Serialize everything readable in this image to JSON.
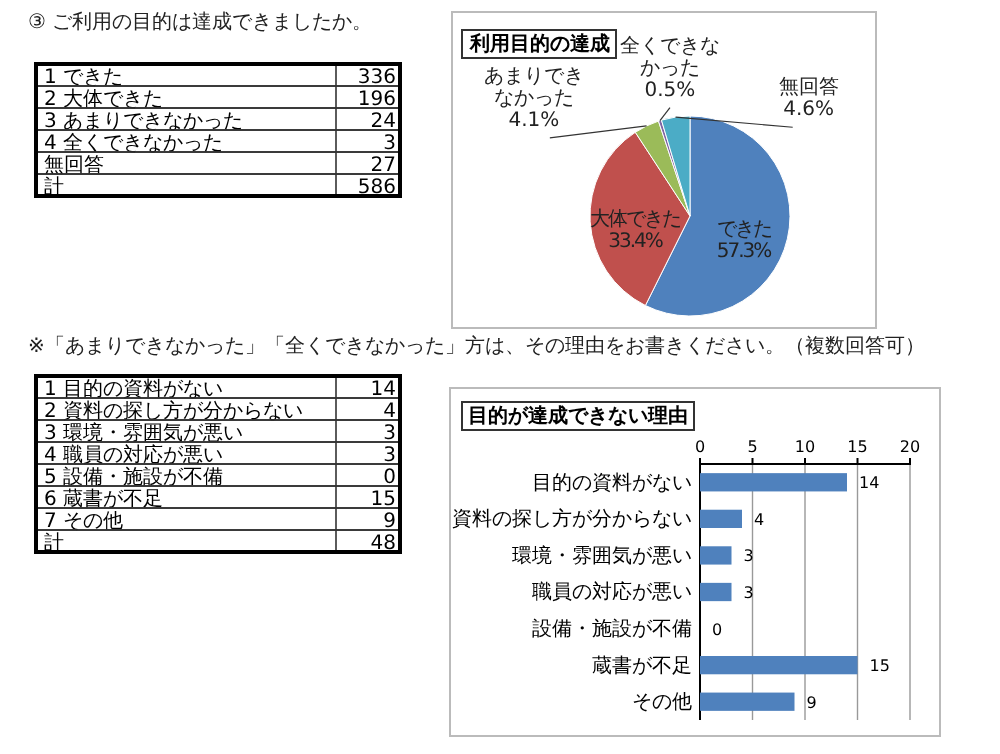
{
  "chart_data": [
    {
      "type": "other",
      "title": "③ ご利用の目的は達成できましたか。",
      "categories": [
        "1 できた",
        "2 大体できた",
        "3 あまりできなかった",
        "4 全くできなかった",
        "無回答",
        "計"
      ],
      "value_labels": [
        "336",
        "196",
        "24",
        "3",
        "27",
        "586"
      ]
    },
    {
      "type": "pie",
      "title": "利用目的の達成",
      "categories": [
        "できた",
        "大体できた",
        "あまりできなかった",
        "全くできなかった",
        "無回答"
      ],
      "values": [
        57.3,
        33.4,
        4.1,
        0.5,
        4.6
      ],
      "value_labels": [
        "57.3%",
        "33.4%",
        "4.1%",
        "0.5%",
        "4.6%"
      ],
      "colors": [
        "#4f81bd",
        "#c0504d",
        "#9bbb59",
        "#8064a2",
        "#4bacc6"
      ]
    },
    {
      "type": "other",
      "title": "※「あまりできなかった」「全くできなかった」方は、その理由をお書きください。（複数回答可）",
      "categories": [
        "1 目的の資料がない",
        "2 資料の探し方が分からない",
        "3 環境・雰囲気が悪い",
        "4 職員の対応が悪い",
        "5 設備・施設が不備",
        "6 蔵書が不足",
        "7 その他",
        "計"
      ],
      "value_labels": [
        "14",
        "4",
        "3",
        "3",
        "0",
        "15",
        "9",
        "48"
      ]
    },
    {
      "type": "bar",
      "orientation": "horizontal",
      "title": "目的が達成できない理由",
      "categories": [
        "目的の資料がない",
        "資料の探し方が分からない",
        "環境・雰囲気が悪い",
        "職員の対応が悪い",
        "設備・施設が不備",
        "蔵書が不足",
        "その他"
      ],
      "values": [
        14,
        4,
        3,
        3,
        0,
        15,
        9
      ],
      "color": "#4f81bd",
      "xlim": [
        0,
        20
      ],
      "xticks": [
        0,
        5,
        10,
        15,
        20
      ],
      "grid": "x",
      "data_labels": true
    }
  ]
}
